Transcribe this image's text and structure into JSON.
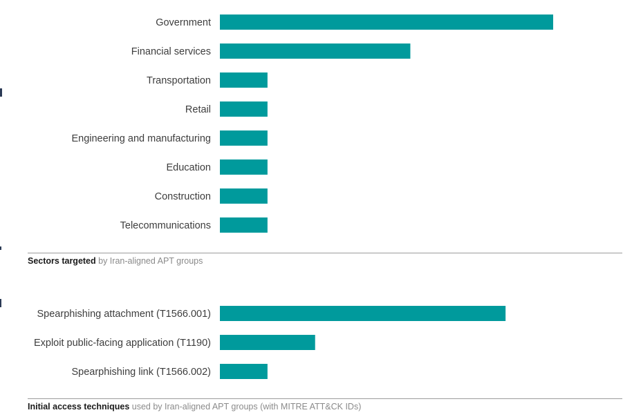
{
  "colors": {
    "bar": "#009A9C",
    "text": "#3d3d3d",
    "caption_bold": "#1a1a1a",
    "caption_rest": "#8a8a8a",
    "rule": "#9a9a9a"
  },
  "chart_data": [
    {
      "type": "bar",
      "orientation": "horizontal",
      "categories": [
        "Government",
        "Financial services",
        "Transportation",
        "Retail",
        "Engineering and manufacturing",
        "Education",
        "Construction",
        "Telecommunications"
      ],
      "values": [
        7,
        4,
        1,
        1,
        1,
        1,
        1,
        1
      ],
      "xlim": [
        0,
        7
      ],
      "grid": false,
      "caption_bold": "Sectors targeted",
      "caption_rest": " by Iran-aligned APT groups"
    },
    {
      "type": "bar",
      "orientation": "horizontal",
      "categories": [
        "Spearphishing attachment (T1566.001)",
        "Exploit public-facing application (T1190)",
        "Spearphishing link (T1566.002)"
      ],
      "values": [
        6,
        2,
        1
      ],
      "xlim": [
        0,
        7
      ],
      "grid": false,
      "caption_bold": "Initial access techniques",
      "caption_rest": " used by Iran-aligned APT groups (with MITRE ATT&CK IDs)"
    }
  ]
}
